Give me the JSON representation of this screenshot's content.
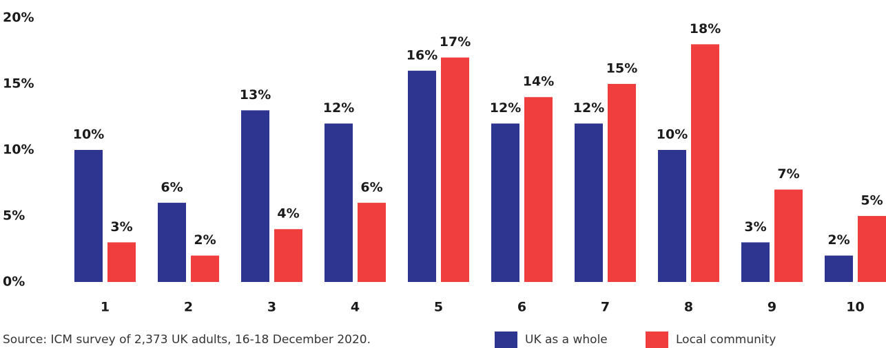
{
  "chart_data": {
    "type": "bar",
    "categories": [
      "1",
      "2",
      "3",
      "4",
      "5",
      "6",
      "7",
      "8",
      "9",
      "10"
    ],
    "series": [
      {
        "name": "UK as a whole",
        "color": "#2e3590",
        "values": [
          10,
          6,
          13,
          12,
          16,
          12,
          12,
          10,
          3,
          2
        ],
        "value_labels": [
          "10%",
          "6%",
          "13%",
          "12%",
          "16%",
          "12%",
          "12%",
          "10%",
          "3%",
          "2%"
        ]
      },
      {
        "name": "Local community",
        "color": "#f03e3e",
        "values": [
          3,
          2,
          4,
          6,
          17,
          14,
          15,
          18,
          7,
          5
        ],
        "value_labels": [
          "3%",
          "2%",
          "4%",
          "6%",
          "17%",
          "14%",
          "15%",
          "18%",
          "7%",
          "5%"
        ]
      }
    ],
    "ylim": [
      0,
      20
    ],
    "yticks": [
      {
        "value": 0,
        "label": "0%"
      },
      {
        "value": 5,
        "label": "5%"
      },
      {
        "value": 10,
        "label": "10%"
      },
      {
        "value": 15,
        "label": "15%"
      },
      {
        "value": 20,
        "label": "20%"
      }
    ],
    "grid": false,
    "legend": "bottom-right",
    "source": "Source: ICM survey of 2,373 UK adults, 16-18 December 2020."
  }
}
